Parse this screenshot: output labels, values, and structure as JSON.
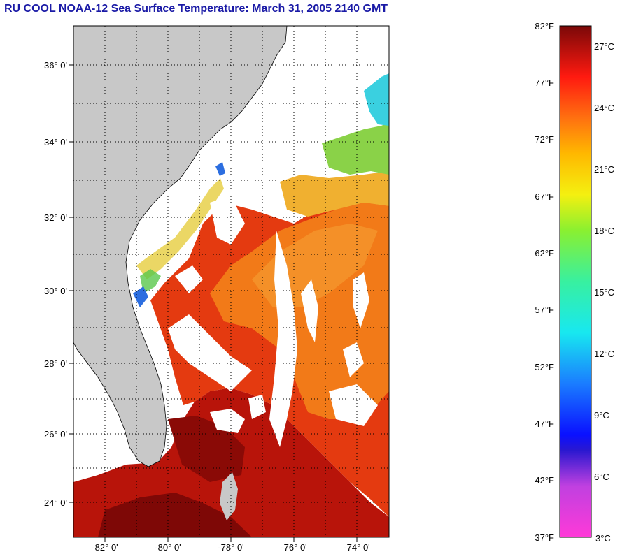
{
  "title": "RU COOL  NOAA-12  Sea Surface Temperature:  March 31, 2005 2140 GMT",
  "map": {
    "lat_labels": [
      "36° 0'",
      "34° 0'",
      "32° 0'",
      "30° 0'",
      "28° 0'",
      "26° 0'",
      "24° 0'"
    ],
    "lon_labels": [
      "-82° 0'",
      "-80° 0'",
      "-78° 0'",
      "-76° 0'",
      "-74° 0'"
    ],
    "colors": {
      "land": "#c8c8c8",
      "cloud": "#ffffff",
      "warm": "#e8380e",
      "warmer": "#c81a0a",
      "hot": "#8e0a06",
      "mid": "#f06a14",
      "orange": "#f39020",
      "cool_yellow": "#e8d43a",
      "green": "#6ad24a",
      "blue": "#2c6ee0",
      "cyan": "#3ad8e8"
    }
  },
  "colorbar": {
    "f_labels": [
      "82°F",
      "77°F",
      "72°F",
      "67°F",
      "62°F",
      "57°F",
      "52°F",
      "47°F",
      "42°F",
      "37°F"
    ],
    "c_labels": [
      "27°C",
      "24°C",
      "21°C",
      "18°C",
      "15°C",
      "12°C",
      "9°C",
      "6°C",
      "3°C"
    ],
    "f_range": [
      37,
      82
    ],
    "c_range": [
      3,
      28
    ]
  }
}
